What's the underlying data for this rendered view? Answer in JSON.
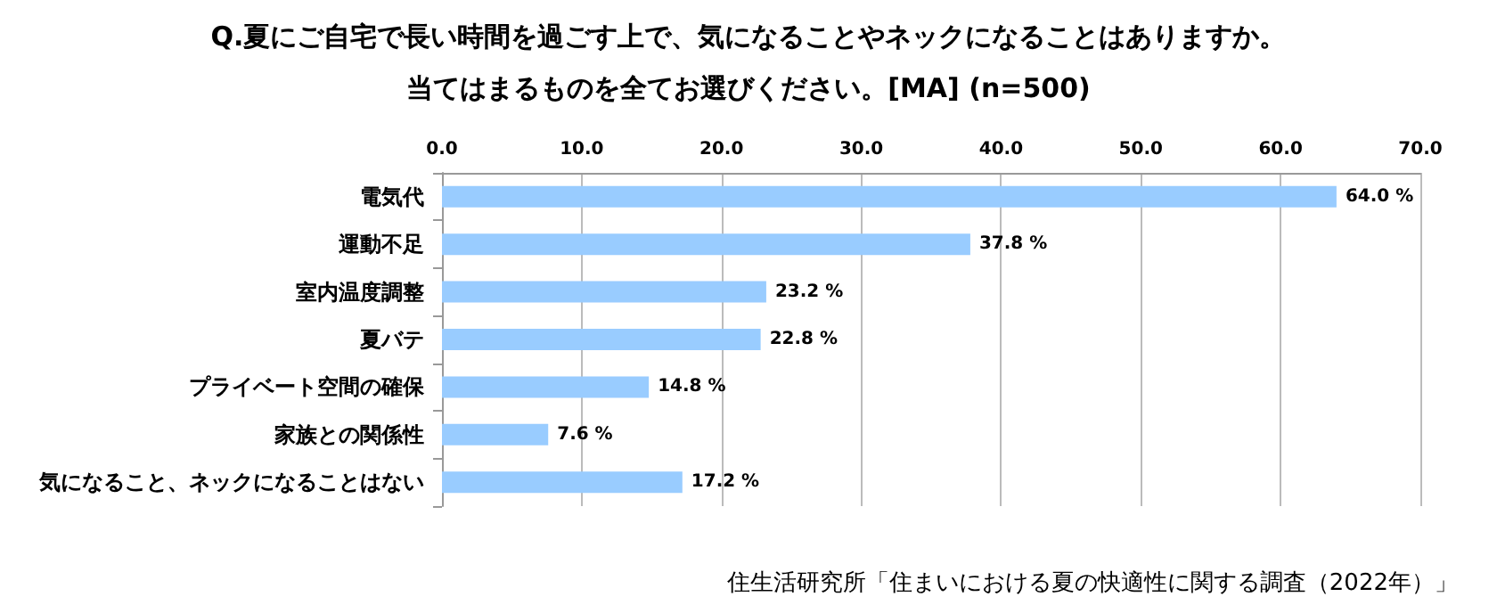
{
  "chart_data": {
    "type": "bar",
    "orientation": "horizontal",
    "title": "Q.夏にご自宅で長い時間を過ごす上で、気になることやネックになることはありますか。",
    "subtitle": "当てはまるものを全てお選びください。[MA] (n=500)",
    "categories": [
      "電気代",
      "運動不足",
      "室内温度調整",
      "夏バテ",
      "プライベート空間の確保",
      "家族との関係性",
      "気になること、ネックになることはない"
    ],
    "values": [
      64.0,
      37.8,
      23.2,
      22.8,
      14.8,
      7.6,
      17.2
    ],
    "value_labels": [
      "64.0 %",
      "37.8 %",
      "23.2 %",
      "22.8 %",
      "14.8 %",
      "7.6 %",
      "17.2 %"
    ],
    "color": "#99ccff",
    "xlim": [
      0,
      70
    ],
    "xticks": [
      {
        "value": 0,
        "label": "0.0"
      },
      {
        "value": 10,
        "label": "10.0"
      },
      {
        "value": 20,
        "label": "20.0"
      },
      {
        "value": 30,
        "label": "30.0"
      },
      {
        "value": 40,
        "label": "40.0"
      },
      {
        "value": 50,
        "label": "50.0"
      },
      {
        "value": 60,
        "label": "60.0"
      },
      {
        "value": 70,
        "label": "70.0"
      }
    ],
    "grid": "x",
    "annotations": [
      "住生活研究所「住まいにおける夏の快適性に関する調査（2022年）」"
    ]
  }
}
